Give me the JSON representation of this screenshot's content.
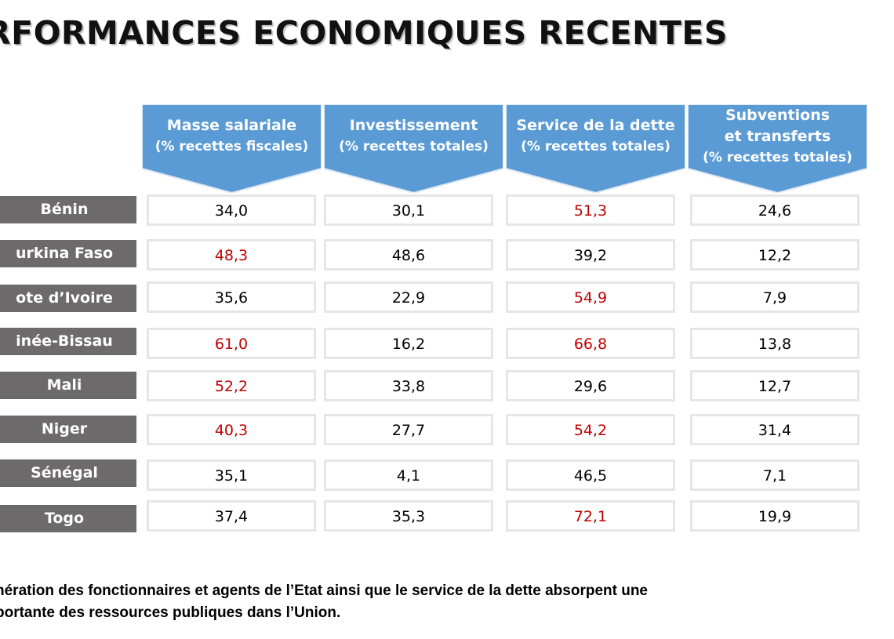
{
  "title": "RFORMANCES ECONOMIQUES RECENTES",
  "columns": [
    {
      "label": "Masse salariale",
      "sub": "(% recettes fiscales)"
    },
    {
      "label": "Investissement",
      "sub": "(% recettes totales)"
    },
    {
      "label": "Service de la dette",
      "sub": "(% recettes totales)"
    },
    {
      "label": "Subventions et transferts",
      "sub": "(% recettes totales)"
    }
  ],
  "rows": [
    {
      "country": "Bénin",
      "values": [
        "34,0",
        "30,1",
        "51,3",
        "24,6"
      ],
      "highlight": [
        false,
        false,
        true,
        false
      ]
    },
    {
      "country": "urkina Faso",
      "values": [
        "48,3",
        "48,6",
        "39,2",
        "12,2"
      ],
      "highlight": [
        true,
        false,
        false,
        false
      ]
    },
    {
      "country": "ote d’Ivoire",
      "values": [
        "35,6",
        "22,9",
        "54,9",
        "7,9"
      ],
      "highlight": [
        false,
        false,
        true,
        false
      ]
    },
    {
      "country": "inée-Bissau",
      "values": [
        "61,0",
        "16,2",
        "66,8",
        "13,8"
      ],
      "highlight": [
        true,
        false,
        true,
        false
      ]
    },
    {
      "country": "Mali",
      "values": [
        "52,2",
        "33,8",
        "29,6",
        "12,7"
      ],
      "highlight": [
        true,
        false,
        false,
        false
      ]
    },
    {
      "country": "Niger",
      "values": [
        "40,3",
        "27,7",
        "54,2",
        "31,4"
      ],
      "highlight": [
        true,
        false,
        true,
        false
      ]
    },
    {
      "country": "Sénégal",
      "values": [
        "35,1",
        "4,1",
        "46,5",
        "7,1"
      ],
      "highlight": [
        false,
        false,
        false,
        false
      ]
    },
    {
      "country": "Togo",
      "values": [
        "37,4",
        "35,3",
        "72,1",
        "19,9"
      ],
      "highlight": [
        false,
        false,
        true,
        false
      ]
    }
  ],
  "footer": {
    "line1": "nération des fonctionnaires et agents de l’Etat ainsi que le service de la dette absorpent une",
    "line2": "portante des ressources publiques dans l’Union."
  },
  "colors": {
    "header": "#5b9bd5",
    "country_bg": "#6d6a6b",
    "highlight_text": "#c00000",
    "cell_border": "#e6e6e6"
  }
}
